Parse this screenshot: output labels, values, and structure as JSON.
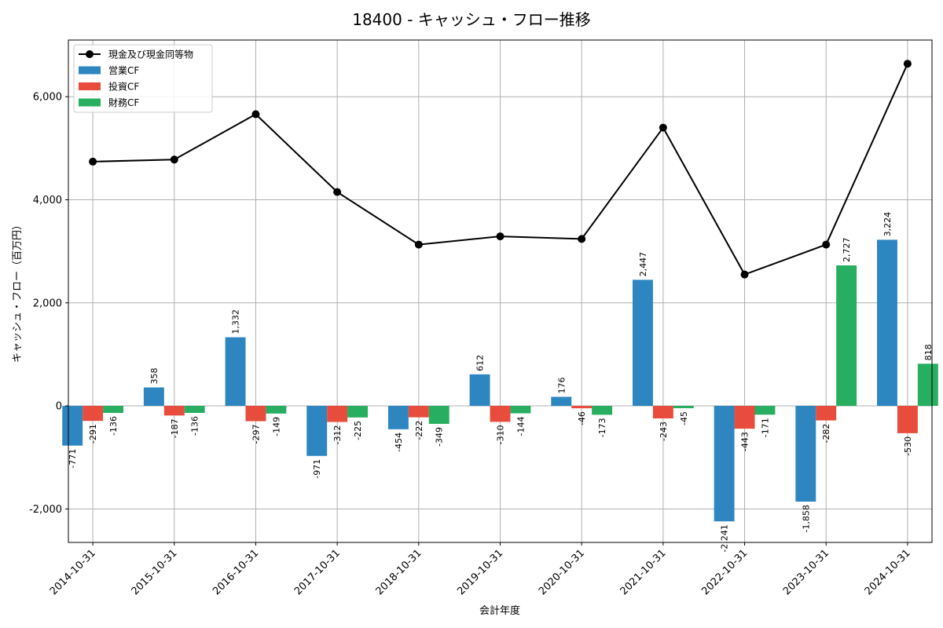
{
  "chart_data": {
    "type": "bar",
    "title": "18400 - キャッシュ・フロー推移",
    "xlabel": "会計年度",
    "ylabel": "キャッシュ・フロー（百万円）",
    "categories": [
      "2014-10-31",
      "2015-10-31",
      "2016-10-31",
      "2017-10-31",
      "2018-10-31",
      "2019-10-31",
      "2020-10-31",
      "2021-10-31",
      "2022-10-31",
      "2023-10-31",
      "2024-10-31"
    ],
    "ylim": [
      -2650,
      7100
    ],
    "yticks": [
      -2000,
      0,
      2000,
      4000,
      6000
    ],
    "ytick_labels": [
      "-2,000",
      "0",
      "2,000",
      "4,000",
      "6,000"
    ],
    "grid": true,
    "legend_position": "top-left",
    "series": [
      {
        "name": "営業CF",
        "kind": "bar",
        "color": "#2e86c1",
        "values": [
          -771,
          358,
          1332,
          -971,
          -454,
          612,
          176,
          2447,
          -2241,
          -1858,
          3224
        ],
        "labels": [
          "-771",
          "358",
          "1,332",
          "-971",
          "-454",
          "612",
          "176",
          "2,447",
          "-2,241",
          "-1,858",
          "3,224"
        ]
      },
      {
        "name": "投資CF",
        "kind": "bar",
        "color": "#e74c3c",
        "values": [
          -291,
          -187,
          -297,
          -312,
          -222,
          -310,
          -46,
          -243,
          -443,
          -282,
          -530
        ],
        "labels": [
          "-291",
          "-187",
          "-297",
          "-312",
          "-222",
          "-310",
          "-46",
          "-243",
          "-443",
          "-282",
          "-530"
        ]
      },
      {
        "name": "財務CF",
        "kind": "bar",
        "color": "#27ae60",
        "values": [
          -136,
          -136,
          -149,
          -225,
          -349,
          -144,
          -173,
          -45,
          -171,
          2727,
          818
        ],
        "labels": [
          "-136",
          "-136",
          "-149",
          "-225",
          "-349",
          "-144",
          "-173",
          "-45",
          "-171",
          "2,727",
          "818"
        ]
      },
      {
        "name": "現金及び現金同等物",
        "kind": "line",
        "color": "#000000",
        "values": [
          4740,
          4780,
          5660,
          4150,
          3130,
          3290,
          3240,
          5400,
          2550,
          3130,
          6640
        ]
      }
    ]
  }
}
